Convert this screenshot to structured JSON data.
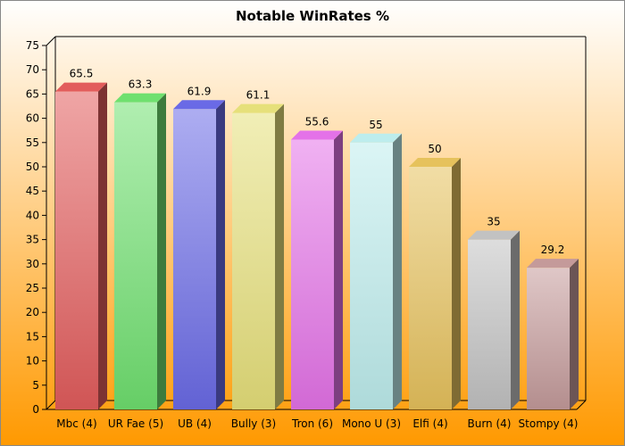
{
  "chart_data": {
    "type": "bar",
    "title": "Notable WinRates %",
    "xlabel": "",
    "ylabel": "",
    "ylim": [
      0,
      75
    ],
    "yticks": [
      0,
      5,
      10,
      15,
      20,
      25,
      30,
      35,
      40,
      45,
      50,
      55,
      60,
      65,
      70,
      75
    ],
    "grid": false,
    "legend": "none",
    "style": "3d-bars",
    "background": {
      "top": "#FFFFFF",
      "bottom": "#FF9900"
    },
    "categories": [
      "Mbc (4)",
      "UR Fae (5)",
      "UB (4)",
      "Bully (3)",
      "Tron (6)",
      "Mono U (3)",
      "Elfi (4)",
      "Burn (4)",
      "Stompy (4)"
    ],
    "values": [
      65.5,
      63.3,
      61.9,
      61.1,
      55.6,
      55,
      50,
      35,
      29.2
    ],
    "value_labels": [
      "65.5",
      "63.3",
      "61.9",
      "61.1",
      "55.6",
      "55",
      "50",
      "35",
      "29.2"
    ],
    "colors": [
      "#E25C5C",
      "#6FE06F",
      "#6A6AE6",
      "#E6E07A",
      "#E472E8",
      "#BDEDED",
      "#E6C25C",
      "#C2C2C2",
      "#C49A9A"
    ]
  }
}
